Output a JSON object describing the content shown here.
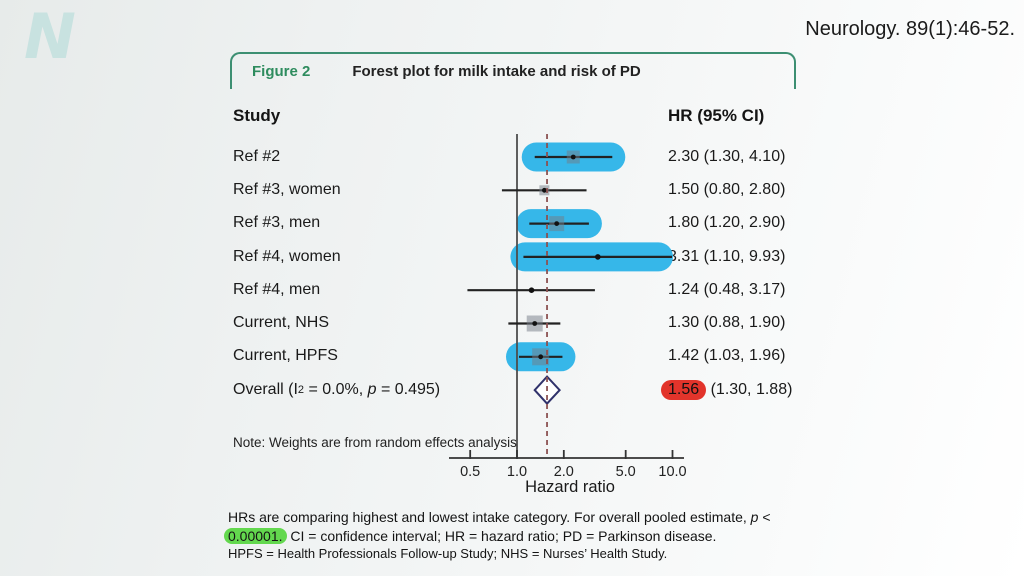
{
  "brand": {
    "logo_letter": "N"
  },
  "citation": "Neurology. 89(1):46-52.",
  "figure": {
    "label": "Figure 2",
    "title": "Forest plot for milk intake and risk of PD",
    "columns": {
      "study": "Study",
      "hr": "HR (95% CI)"
    },
    "note": "Note: Weights are from random effects analysis"
  },
  "chart_data": {
    "type": "forest",
    "x_scale": "log",
    "xlabel": "Hazard ratio",
    "x_ticks": [
      0.5,
      1.0,
      2.0,
      5.0,
      10.0
    ],
    "x_tick_labels": [
      "0.5",
      "1.0",
      "2.0",
      "5.0",
      "10.0"
    ],
    "reference_line": 1.0,
    "pooled_dashed_line": 1.56,
    "rows": [
      {
        "label": "Ref #2",
        "hr": 2.3,
        "lo": 1.3,
        "hi": 4.1,
        "text": "2.30 (1.30, 4.10)",
        "highlighted": true,
        "marker": 13
      },
      {
        "label": "Ref #3, women",
        "hr": 1.5,
        "lo": 0.8,
        "hi": 2.8,
        "text": "1.50 (0.80, 2.80)",
        "highlighted": false,
        "marker": 10
      },
      {
        "label": "Ref #3, men",
        "hr": 1.8,
        "lo": 1.2,
        "hi": 2.9,
        "text": "1.80 (1.20, 2.90)",
        "highlighted": true,
        "marker": 15
      },
      {
        "label": "Ref #4, women",
        "hr": 3.31,
        "lo": 1.1,
        "hi": 9.93,
        "text": "3.31 (1.10, 9.93)",
        "highlighted": true,
        "marker": 0
      },
      {
        "label": "Ref #4, men",
        "hr": 1.24,
        "lo": 0.48,
        "hi": 3.17,
        "text": "1.24 (0.48, 3.17)",
        "highlighted": false,
        "marker": 0
      },
      {
        "label": "Current, NHS",
        "hr": 1.3,
        "lo": 0.88,
        "hi": 1.9,
        "text": "1.30 (0.88, 1.90)",
        "highlighted": false,
        "marker": 16
      },
      {
        "label": "Current, HPFS",
        "hr": 1.42,
        "lo": 1.03,
        "hi": 1.96,
        "text": "1.42 (1.03, 1.96)",
        "highlighted": true,
        "marker": 17
      }
    ],
    "overall": {
      "label_pre": "Overall (I",
      "label_sup": "2",
      "label_mid": " = 0.0%, ",
      "label_italic": "p",
      "label_post": " = 0.495)",
      "hr": 1.56,
      "lo": 1.3,
      "hi": 1.88,
      "hr_text": "1.56",
      "ci_text": " (1.30, 1.88)"
    }
  },
  "caption": {
    "line1_pre": "HRs are comparing highest and lowest intake category. For overall pooled estimate, ",
    "line1_italic": "p",
    "line1_post": " <",
    "line2_highlight": "0.00001.",
    "line2_rest": " CI = confidence interval; HR = hazard ratio; PD = Parkinson disease.",
    "line3": "HPFS = Health Professionals Follow-up Study;  NHS = Nurses’ Health Study."
  },
  "colors": {
    "highlight_blue": "#36b7e9",
    "highlight_red": "#e2342b",
    "highlight_green": "#63d84e",
    "figure_green": "#2e8c5e",
    "box_border_green": "#3c8f72",
    "reference_line_color": "#4d4d4d",
    "dashed_line_color": "#8c5252",
    "ci_line_color": "#222222",
    "diamond_stroke": "#30326b"
  }
}
